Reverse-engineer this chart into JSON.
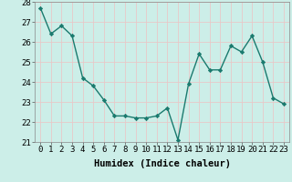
{
  "x": [
    0,
    1,
    2,
    3,
    4,
    5,
    6,
    7,
    8,
    9,
    10,
    11,
    12,
    13,
    14,
    15,
    16,
    17,
    18,
    19,
    20,
    21,
    22,
    23
  ],
  "y": [
    27.7,
    26.4,
    26.8,
    26.3,
    24.2,
    23.8,
    23.1,
    22.3,
    22.3,
    22.2,
    22.2,
    22.3,
    22.7,
    21.1,
    23.9,
    25.4,
    24.6,
    24.6,
    25.8,
    25.5,
    26.3,
    25.0,
    23.2,
    22.9
  ],
  "line_color": "#1a7a6e",
  "marker": "D",
  "marker_size": 2.2,
  "xlabel": "Humidex (Indice chaleur)",
  "xlabel_fontsize": 7.5,
  "bg_color": "#cceee8",
  "grid_color": "#e8c8c8",
  "tick_label_fontsize": 6.5,
  "ylim": [
    21,
    28
  ],
  "yticks": [
    21,
    22,
    23,
    24,
    25,
    26,
    27,
    28
  ],
  "xticks": [
    0,
    1,
    2,
    3,
    4,
    5,
    6,
    7,
    8,
    9,
    10,
    11,
    12,
    13,
    14,
    15,
    16,
    17,
    18,
    19,
    20,
    21,
    22,
    23
  ]
}
